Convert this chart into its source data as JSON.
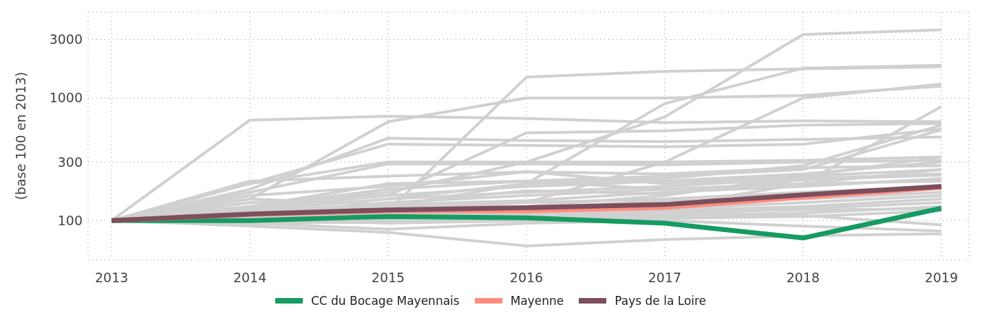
{
  "chart_data": {
    "type": "line",
    "ylabel": "(base 100 en 2013)",
    "x": [
      2013,
      2014,
      2015,
      2016,
      2017,
      2018,
      2019
    ],
    "xlim": [
      2012.83,
      2019.2
    ],
    "xticks": [
      2013,
      2014,
      2015,
      2016,
      2017,
      2018,
      2019
    ],
    "ylim": [
      48,
      5000
    ],
    "yticks": [
      100,
      300,
      1000,
      3000
    ],
    "log": true,
    "grid": true,
    "legend": "bottom",
    "series": [
      {
        "color": "#d0d0d0",
        "values": [
          100,
          130,
          170,
          300,
          700,
          3300,
          3600
        ]
      },
      {
        "color": "#d0d0d0",
        "values": [
          100,
          660,
          710,
          680,
          630,
          650,
          640
        ]
      },
      {
        "color": "#d0d0d0",
        "values": [
          100,
          110,
          120,
          1480,
          1650,
          1730,
          1800
        ]
      },
      {
        "color": "#d0d0d0",
        "values": [
          100,
          150,
          640,
          1000,
          1000,
          1050,
          1250
        ]
      },
      {
        "color": "#d0d0d0",
        "values": [
          100,
          180,
          470,
          450,
          440,
          460,
          480
        ]
      },
      {
        "color": "#d0d0d0",
        "values": [
          100,
          200,
          420,
          410,
          400,
          420,
          560
        ]
      },
      {
        "color": "#d0d0d0",
        "values": [
          100,
          200,
          300,
          300,
          300,
          310,
          330
        ]
      },
      {
        "color": "#d0d0d0",
        "values": [
          100,
          170,
          290,
          290,
          285,
          300,
          310
        ]
      },
      {
        "color": "#d0d0d0",
        "values": [
          100,
          210,
          230,
          250,
          240,
          270,
          280
        ]
      },
      {
        "color": "#d0d0d0",
        "values": [
          100,
          110,
          130,
          200,
          900,
          1750,
          1850
        ]
      },
      {
        "color": "#d0d0d0",
        "values": [
          100,
          110,
          120,
          140,
          300,
          1000,
          1300
        ]
      },
      {
        "color": "#d0d0d0",
        "values": [
          100,
          105,
          110,
          120,
          130,
          200,
          850
        ]
      },
      {
        "color": "#d0d0d0",
        "values": [
          100,
          120,
          150,
          200,
          220,
          280,
          600
        ]
      },
      {
        "color": "#d0d0d0",
        "values": [
          100,
          130,
          180,
          210,
          230,
          260,
          550
        ]
      },
      {
        "color": "#d0d0d0",
        "values": [
          100,
          140,
          160,
          520,
          540,
          600,
          620
        ]
      },
      {
        "color": "#d0d0d0",
        "values": [
          100,
          90,
          80,
          62,
          70,
          75,
          78
        ]
      },
      {
        "color": "#d0d0d0",
        "values": [
          100,
          95,
          85,
          95,
          100,
          90,
          82
        ]
      },
      {
        "color": "#d0d0d0",
        "values": [
          100,
          105,
          95,
          100,
          105,
          110,
          92
        ]
      },
      {
        "color": "#d0d0d0",
        "values": [
          100,
          120,
          150,
          170,
          190,
          220,
          240
        ]
      },
      {
        "color": "#d0d0d0",
        "values": [
          100,
          115,
          140,
          160,
          180,
          200,
          260
        ]
      },
      {
        "color": "#d0d0d0",
        "values": [
          100,
          130,
          200,
          210,
          180,
          200,
          210
        ]
      },
      {
        "color": "#d0d0d0",
        "values": [
          100,
          110,
          130,
          140,
          150,
          170,
          190
        ]
      },
      {
        "color": "#d0d0d0",
        "values": [
          100,
          105,
          115,
          125,
          146,
          150,
          170
        ]
      },
      {
        "color": "#d0d0d0",
        "values": [
          100,
          108,
          112,
          118,
          125,
          140,
          160
        ]
      },
      {
        "color": "#d0d0d0",
        "values": [
          100,
          102,
          108,
          115,
          120,
          130,
          150
        ]
      },
      {
        "color": "#d0d0d0",
        "values": [
          100,
          98,
          104,
          108,
          112,
          125,
          140
        ]
      },
      {
        "color": "#d0d0d0",
        "values": [
          100,
          100,
          100,
          105,
          110,
          115,
          130
        ]
      },
      {
        "color": "#d0d0d0",
        "values": [
          100,
          97,
          96,
          100,
          104,
          108,
          120
        ]
      },
      {
        "color": "#d0d0d0",
        "values": [
          100,
          112,
          125,
          130,
          160,
          230,
          330
        ]
      },
      {
        "color": "#d0d0d0",
        "values": [
          100,
          125,
          160,
          190,
          210,
          240,
          300
        ]
      },
      {
        "color": "#d0d0d0",
        "values": [
          100,
          118,
          135,
          145,
          170,
          190,
          220
        ]
      },
      {
        "color": "#d0d0d0",
        "values": [
          100,
          93,
          100,
          110,
          118,
          122,
          125
        ]
      },
      {
        "color": "#d0d0d0",
        "values": [
          100,
          150,
          135,
          175,
          165,
          215,
          235
        ]
      },
      {
        "color": "#d0d0d0",
        "values": [
          100,
          160,
          190,
          250,
          200,
          230,
          260
        ]
      },
      {
        "name": "CC du Bocage Mayennais",
        "color": "#169b62",
        "values": [
          100,
          100,
          108,
          105,
          95,
          72,
          126
        ]
      },
      {
        "name": "Mayenne",
        "color": "#ff8d7e",
        "values": [
          100,
          112,
          120,
          120,
          128,
          155,
          186
        ]
      },
      {
        "name": "Pays de la Loire",
        "color": "#7d4e5b",
        "values": [
          100,
          113,
          122,
          127,
          135,
          162,
          190
        ]
      }
    ]
  }
}
